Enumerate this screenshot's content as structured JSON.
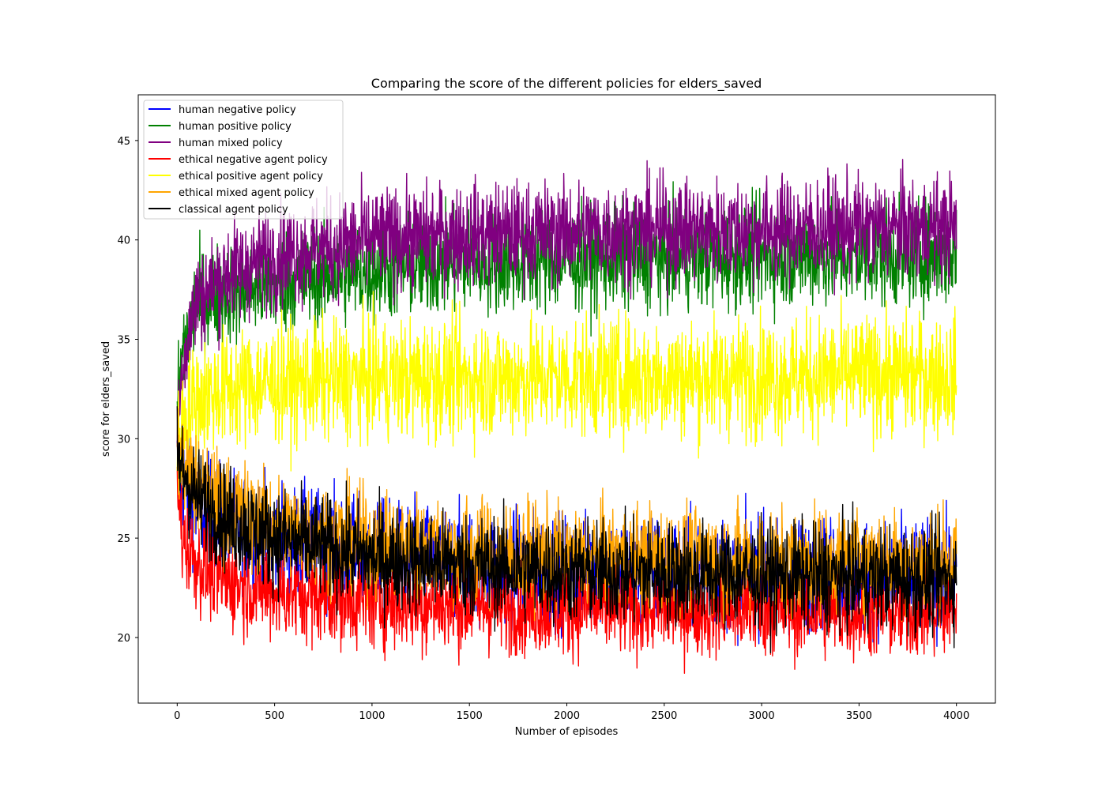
{
  "chart_data": {
    "type": "line",
    "title": "Comparing the score of the different policies for elders_saved",
    "xlabel": "Number of episodes",
    "ylabel": "score for elders_saved",
    "xlim": [
      -200,
      4200
    ],
    "ylim": [
      16.7,
      47.3
    ],
    "xticks": [
      0,
      500,
      1000,
      1500,
      2000,
      2500,
      3000,
      3500,
      4000
    ],
    "yticks": [
      20,
      25,
      30,
      35,
      40,
      45
    ],
    "grid": false,
    "legend_position": "top-left",
    "series": [
      {
        "name": "human negative policy",
        "color": "#0000ff",
        "x": [
          0,
          100,
          250,
          500,
          1000,
          1500,
          2000,
          2500,
          3000,
          3500,
          4000
        ],
        "mean": [
          28.5,
          26.5,
          25.8,
          25.0,
          24.1,
          23.7,
          23.4,
          23.3,
          23.2,
          23.1,
          23.0
        ],
        "noise": 1.4
      },
      {
        "name": "human positive policy",
        "color": "#008000",
        "x": [
          0,
          30,
          100,
          250,
          500,
          1000,
          1500,
          2000,
          2500,
          3000,
          3500,
          4000
        ],
        "mean": [
          31.5,
          34.5,
          36.8,
          37.4,
          37.8,
          38.5,
          38.9,
          39.0,
          39.1,
          39.2,
          39.2,
          39.3
        ],
        "noise": 1.3
      },
      {
        "name": "human mixed policy",
        "color": "#800080",
        "x": [
          0,
          30,
          100,
          250,
          500,
          1000,
          1500,
          2000,
          2500,
          3000,
          3500,
          4000
        ],
        "mean": [
          30.5,
          34.0,
          37.0,
          38.3,
          39.2,
          40.0,
          40.3,
          40.4,
          40.5,
          40.5,
          40.6,
          40.6
        ],
        "noise": 1.3
      },
      {
        "name": "ethical negative agent policy",
        "color": "#ff0000",
        "x": [
          0,
          30,
          100,
          250,
          500,
          1000,
          1500,
          2000,
          2500,
          3000,
          3500,
          4000
        ],
        "mean": [
          27.5,
          25.0,
          23.8,
          22.8,
          22.3,
          21.8,
          21.6,
          21.5,
          21.4,
          21.4,
          21.3,
          21.3
        ],
        "noise": 1.2
      },
      {
        "name": "ethical positive agent policy",
        "color": "#ffff00",
        "x": [
          0,
          30,
          100,
          250,
          500,
          1000,
          1500,
          2000,
          2500,
          3000,
          3500,
          4000
        ],
        "mean": [
          29.0,
          31.0,
          32.0,
          32.5,
          32.8,
          33.0,
          33.0,
          33.1,
          33.1,
          33.1,
          33.2,
          33.2
        ],
        "noise": 1.5
      },
      {
        "name": "ethical mixed agent policy",
        "color": "#ffa500",
        "x": [
          0,
          100,
          250,
          500,
          1000,
          1500,
          2000,
          2500,
          3000,
          3500,
          4000
        ],
        "mean": [
          29.5,
          27.5,
          26.6,
          25.6,
          24.8,
          24.4,
          24.1,
          24.0,
          23.9,
          23.9,
          23.8
        ],
        "noise": 1.3
      },
      {
        "name": "classical agent policy",
        "color": "#000000",
        "x": [
          0,
          100,
          250,
          500,
          1000,
          1500,
          2000,
          2500,
          3000,
          3500,
          4000
        ],
        "mean": [
          29.0,
          27.0,
          26.0,
          25.0,
          24.0,
          23.6,
          23.3,
          23.2,
          23.1,
          23.0,
          22.9
        ],
        "noise": 1.3
      }
    ]
  }
}
